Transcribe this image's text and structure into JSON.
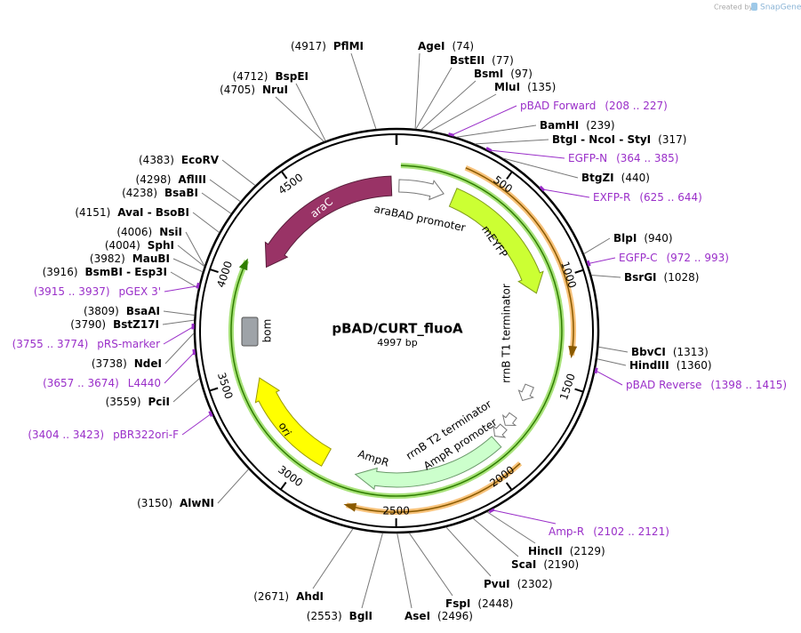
{
  "header": {
    "credit": "Created by",
    "brand": "SnapGene"
  },
  "map": {
    "name": "pBAD/CURT_fluoA",
    "size": "4997 bp",
    "ticks": [
      "500",
      "1000",
      "1500",
      "2000",
      "2500",
      "3000",
      "3500",
      "4000",
      "4500"
    ]
  },
  "features": [
    {
      "label": "araC"
    },
    {
      "label": "araBAD promoter"
    },
    {
      "label": "mEYFP"
    },
    {
      "label": "rrnB T1 terminator"
    },
    {
      "label": "rrnB T2 terminator"
    },
    {
      "label": "AmpR promoter"
    },
    {
      "label": "AmpR"
    },
    {
      "label": "ori"
    },
    {
      "label": "bom"
    }
  ],
  "enzymes": [
    {
      "name": "AgeI",
      "position": "(74)"
    },
    {
      "name": "BstEII",
      "position": "(77)"
    },
    {
      "name": "BsmI",
      "position": "(97)"
    },
    {
      "name": "MluI",
      "position": "(135)"
    },
    {
      "name": "BamHI",
      "position": "(239)"
    },
    {
      "name": "BtgI - NcoI - StyI",
      "position": "(317)"
    },
    {
      "name": "BtgZI",
      "position": "(440)"
    },
    {
      "name": "BlpI",
      "position": "(940)"
    },
    {
      "name": "BsrGI",
      "position": "(1028)"
    },
    {
      "name": "BbvCI",
      "position": "(1313)"
    },
    {
      "name": "HindIII",
      "position": "(1360)"
    },
    {
      "name": "HincII",
      "position": "(2129)"
    },
    {
      "name": "ScaI",
      "position": "(2190)"
    },
    {
      "name": "PvuI",
      "position": "(2302)"
    },
    {
      "name": "FspI",
      "position": "(2448)"
    },
    {
      "name": "AseI",
      "position": "(2496)"
    },
    {
      "name": "BglI",
      "position": "(2553)"
    },
    {
      "name": "AhdI",
      "position": "(2671)"
    },
    {
      "name": "AlwNI",
      "position": "(3150)"
    },
    {
      "name": "PciI",
      "position": "(3559)"
    },
    {
      "name": "NdeI",
      "position": "(3738)"
    },
    {
      "name": "BstZ17I",
      "position": "(3790)"
    },
    {
      "name": "BsaAI",
      "position": "(3809)"
    },
    {
      "name": "BsmBI - Esp3I",
      "position": "(3916)"
    },
    {
      "name": "MauBI",
      "position": "(3982)"
    },
    {
      "name": "SphI",
      "position": "(4004)"
    },
    {
      "name": "NsiI",
      "position": "(4006)"
    },
    {
      "name": "AvaI - BsoBI",
      "position": "(4151)"
    },
    {
      "name": "BsaBI",
      "position": "(4238)"
    },
    {
      "name": "AflIII",
      "position": "(4298)"
    },
    {
      "name": "EcoRV",
      "position": "(4383)"
    },
    {
      "name": "NruI",
      "position": "(4705)"
    },
    {
      "name": "BspEI",
      "position": "(4712)"
    },
    {
      "name": "PflMI",
      "position": "(4917)"
    }
  ],
  "primers": [
    {
      "name": "pBAD Forward",
      "range": "(208 .. 227)"
    },
    {
      "name": "EGFP-N",
      "range": "(364 .. 385)"
    },
    {
      "name": "EXFP-R",
      "range": "(625 .. 644)"
    },
    {
      "name": "EGFP-C",
      "range": "(972 .. 993)"
    },
    {
      "name": "pBAD Reverse",
      "range": "(1398 .. 1415)"
    },
    {
      "name": "Amp-R",
      "range": "(2102 .. 2121)"
    },
    {
      "name": "pBR322ori-F",
      "range": "(3404 .. 3423)"
    },
    {
      "name": "L4440",
      "range": "(3657 .. 3674)"
    },
    {
      "name": "pRS-marker",
      "range": "(3755 .. 3774)"
    },
    {
      "name": "pGEX 3'",
      "range": "(3915 .. 3937)"
    }
  ]
}
